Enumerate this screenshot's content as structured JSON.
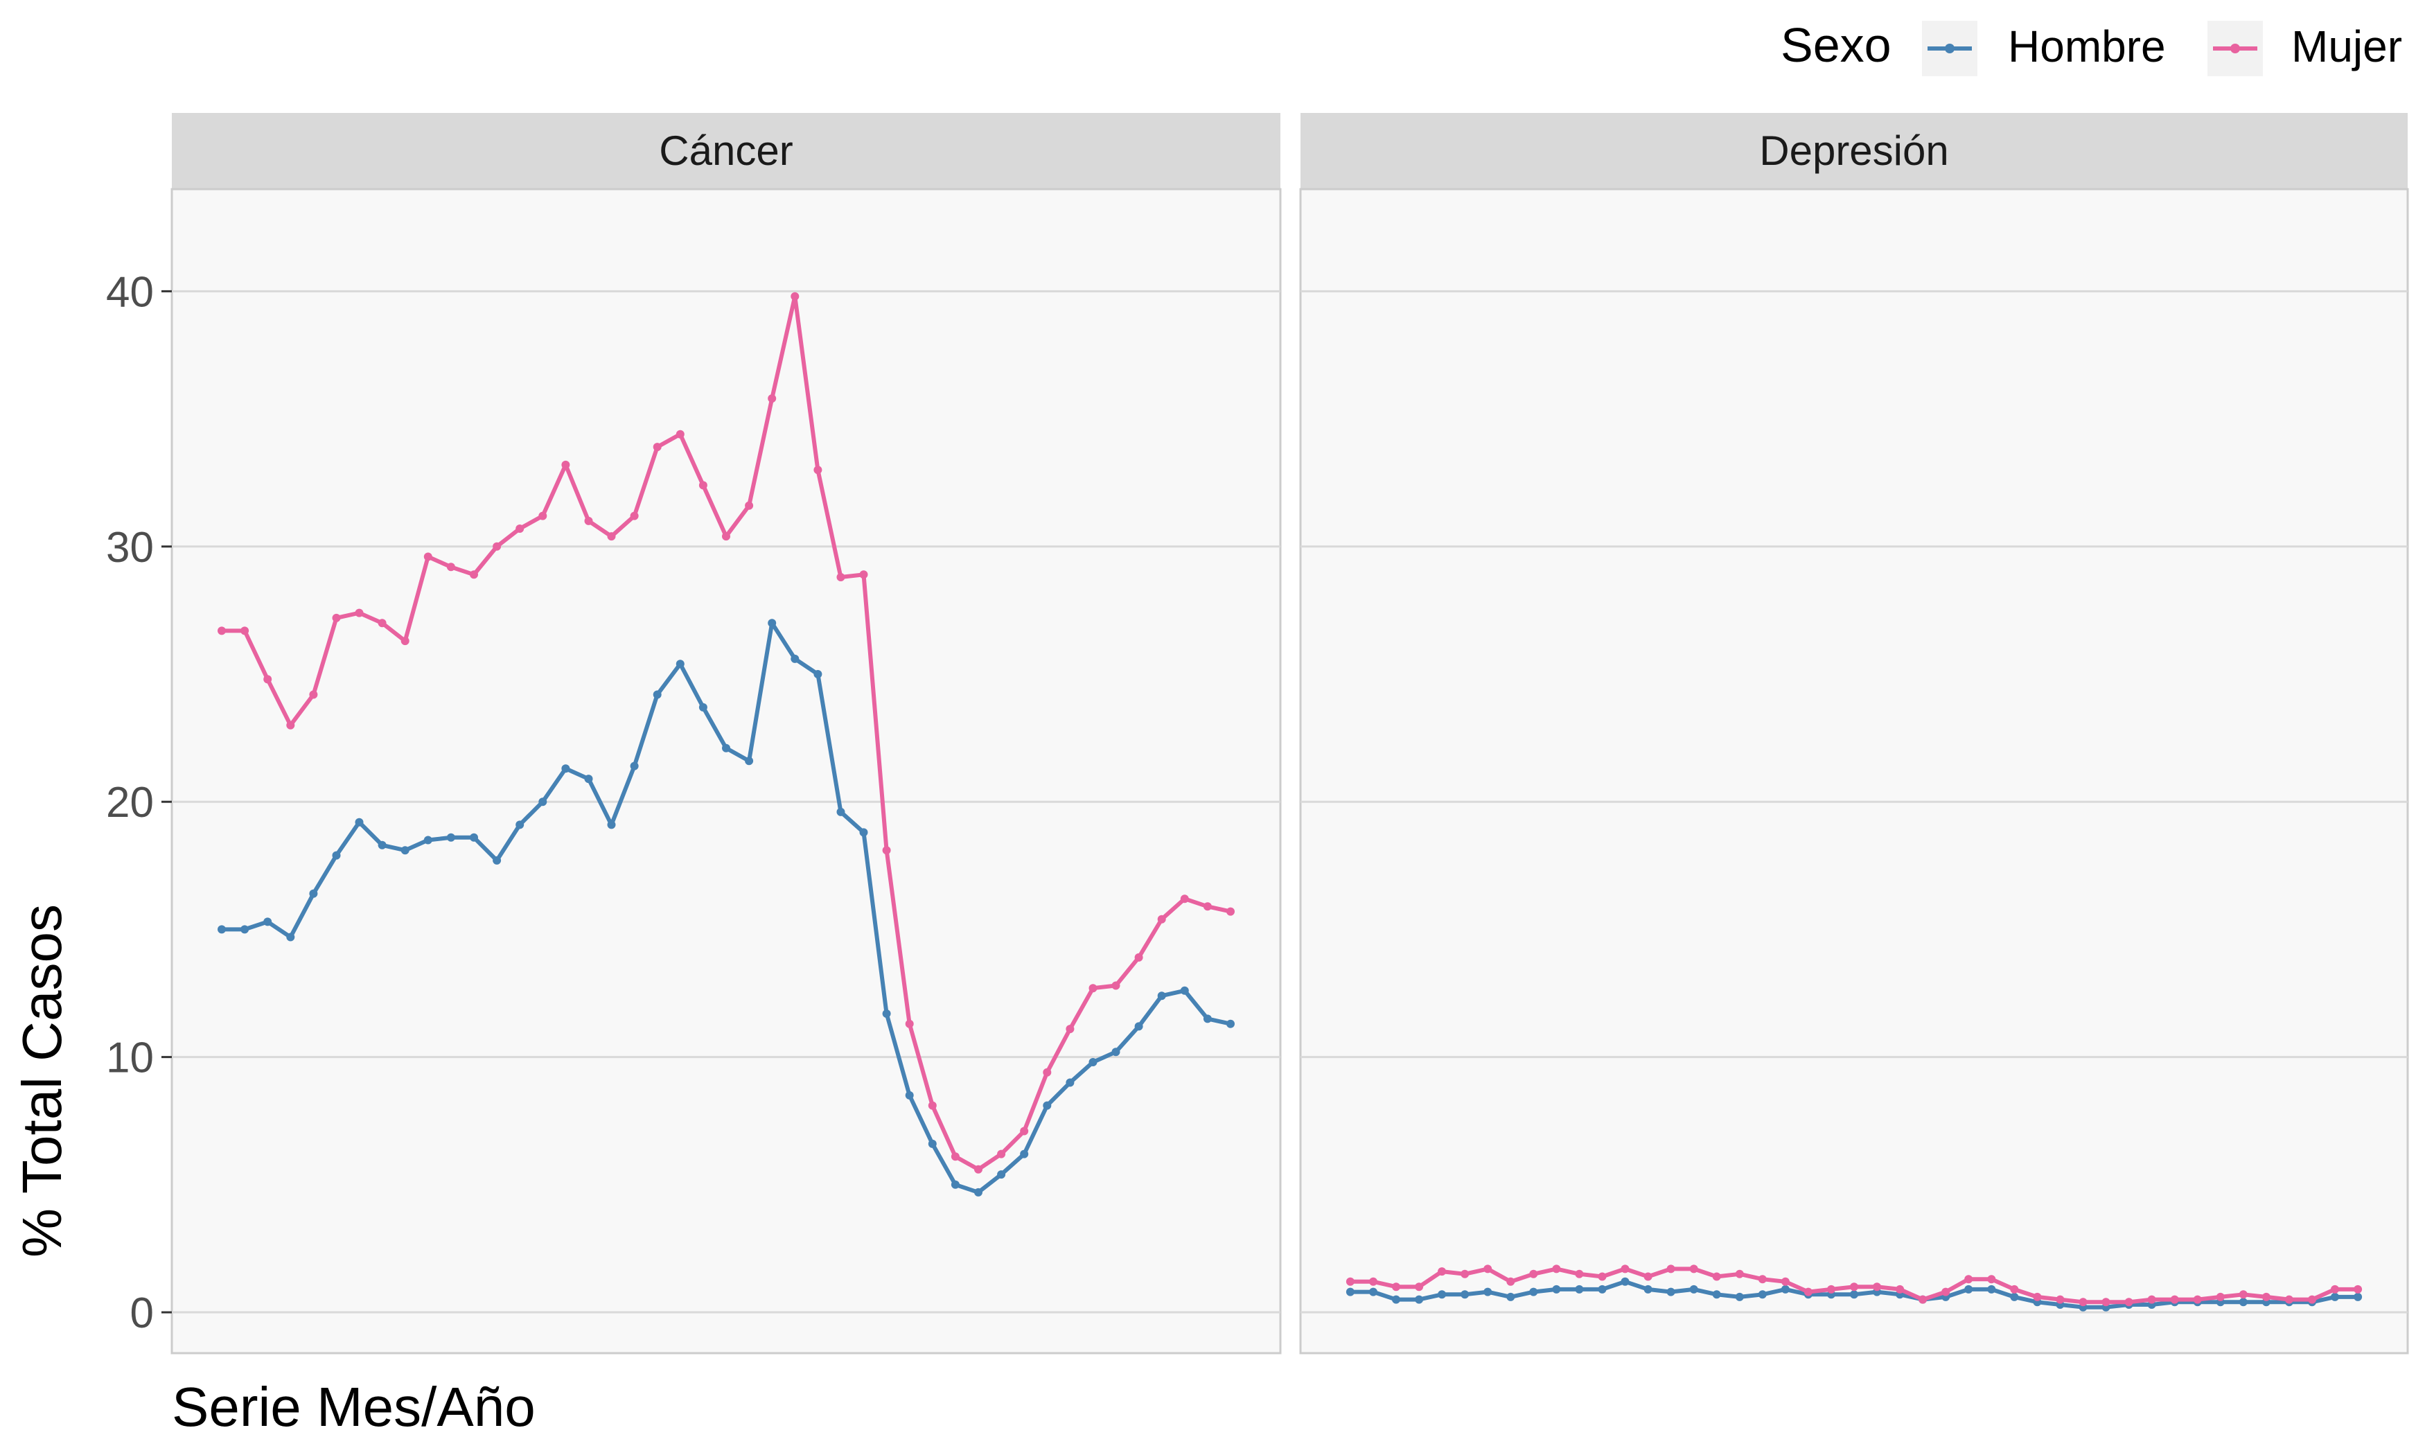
{
  "colors": {
    "hombre": "#4682B4",
    "mujer": "#E8629F",
    "panel_bg": "#F8F8F8",
    "strip_bg": "#D9D9D9",
    "grid": "#D9D9D9",
    "axis_text": "#4D4D4D"
  },
  "legend": {
    "title": "Sexo",
    "items": [
      {
        "label": "Hombre",
        "series": "hombre"
      },
      {
        "label": "Mujer",
        "series": "mujer"
      }
    ]
  },
  "chart_data": {
    "type": "line",
    "xlabel": "Serie Mes/Año",
    "ylabel": "% Total Casos",
    "ylim": [
      -1.6,
      44
    ],
    "yticks": [
      0,
      10,
      20,
      30,
      40
    ],
    "grid": true,
    "legend_position": "top-right",
    "x_count": 45,
    "panels": [
      {
        "title": "Cáncer",
        "series": [
          {
            "name": "Hombre",
            "key": "hombre",
            "values": [
              15.0,
              15.0,
              15.3,
              14.7,
              16.4,
              17.9,
              19.2,
              18.3,
              18.1,
              18.5,
              18.6,
              18.6,
              17.7,
              19.1,
              20.0,
              21.3,
              20.9,
              19.1,
              21.4,
              24.2,
              25.4,
              23.7,
              22.1,
              21.6,
              27.0,
              25.6,
              25.0,
              19.6,
              18.8,
              11.7,
              8.5,
              6.6,
              5.0,
              4.7,
              5.4,
              6.2,
              8.1,
              9.0,
              9.8,
              10.2,
              11.2,
              12.4,
              12.6,
              11.5,
              11.3
            ]
          },
          {
            "name": "Mujer",
            "key": "mujer",
            "values": [
              26.7,
              26.7,
              24.8,
              23.0,
              24.2,
              27.2,
              27.4,
              27.0,
              26.3,
              29.6,
              29.2,
              28.9,
              30.0,
              30.7,
              31.2,
              33.2,
              31.0,
              30.4,
              31.2,
              33.9,
              34.4,
              32.4,
              30.4,
              31.6,
              35.8,
              39.8,
              33.0,
              28.8,
              28.9,
              18.1,
              11.3,
              8.1,
              6.1,
              5.6,
              6.2,
              7.1,
              9.4,
              11.1,
              12.7,
              12.8,
              13.9,
              15.4,
              16.2,
              15.9,
              15.7
            ]
          }
        ]
      },
      {
        "title": "Depresión",
        "series": [
          {
            "name": "Hombre",
            "key": "hombre",
            "values": [
              0.8,
              0.8,
              0.5,
              0.5,
              0.7,
              0.7,
              0.8,
              0.6,
              0.8,
              0.9,
              0.9,
              0.9,
              1.2,
              0.9,
              0.8,
              0.9,
              0.7,
              0.6,
              0.7,
              0.9,
              0.7,
              0.7,
              0.7,
              0.8,
              0.7,
              0.5,
              0.6,
              0.9,
              0.9,
              0.6,
              0.4,
              0.3,
              0.2,
              0.2,
              0.3,
              0.3,
              0.4,
              0.4,
              0.4,
              0.4,
              0.4,
              0.4,
              0.4,
              0.6,
              0.6
            ]
          },
          {
            "name": "Mujer",
            "key": "mujer",
            "values": [
              1.2,
              1.2,
              1.0,
              1.0,
              1.6,
              1.5,
              1.7,
              1.2,
              1.5,
              1.7,
              1.5,
              1.4,
              1.7,
              1.4,
              1.7,
              1.7,
              1.4,
              1.5,
              1.3,
              1.2,
              0.8,
              0.9,
              1.0,
              1.0,
              0.9,
              0.5,
              0.8,
              1.3,
              1.3,
              0.9,
              0.6,
              0.5,
              0.4,
              0.4,
              0.4,
              0.5,
              0.5,
              0.5,
              0.6,
              0.7,
              0.6,
              0.5,
              0.5,
              0.9,
              0.9
            ]
          }
        ]
      }
    ]
  }
}
